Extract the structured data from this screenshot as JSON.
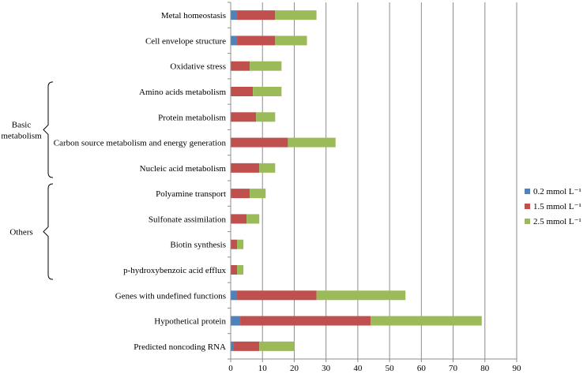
{
  "chart_data": {
    "type": "bar",
    "orientation": "horizontal",
    "stacked": true,
    "title": "",
    "xlabel": "",
    "ylabel": "",
    "xlim": [
      0,
      90
    ],
    "x_ticks": [
      "0",
      "10",
      "20",
      "30",
      "40",
      "50",
      "60",
      "70",
      "80",
      "90"
    ],
    "grid": true,
    "legend_position": "right",
    "categories": [
      "Metal homeostasis",
      "Cell envelope structure",
      "Oxidative stress",
      "Amino acids metabolism",
      "Protein metabolism",
      "Carbon source metabolism and energy generation",
      "Nucleic acid metabolism",
      "Polyamine transport",
      "Sulfonate assimilation",
      "Biotin synthesis",
      "p-hydroxybenzoic acid efflux",
      "Genes with undefined functions",
      "Hypothetical protein",
      "Predicted noncoding RNA"
    ],
    "series": [
      {
        "name": "0.2 mmol L⁻¹",
        "color": "#4f81bd",
        "values": [
          2,
          2,
          0,
          0,
          0,
          0,
          0,
          0,
          0,
          0,
          0,
          2,
          3,
          1
        ]
      },
      {
        "name": "1.5 mmol L⁻¹",
        "color": "#c0504d",
        "values": [
          12,
          12,
          6,
          7,
          8,
          18,
          9,
          6,
          5,
          2,
          2,
          25,
          41,
          8
        ]
      },
      {
        "name": "2.5 mmol L⁻¹",
        "color": "#9bbb59",
        "values": [
          13,
          10,
          10,
          9,
          6,
          15,
          5,
          5,
          4,
          2,
          2,
          28,
          35,
          11
        ]
      }
    ],
    "groups": [
      {
        "label_lines": [
          "Basic",
          "metabolism"
        ],
        "first_category": 3,
        "last_category": 6
      },
      {
        "label_lines": [
          "Others"
        ],
        "first_category": 7,
        "last_category": 10
      }
    ]
  }
}
